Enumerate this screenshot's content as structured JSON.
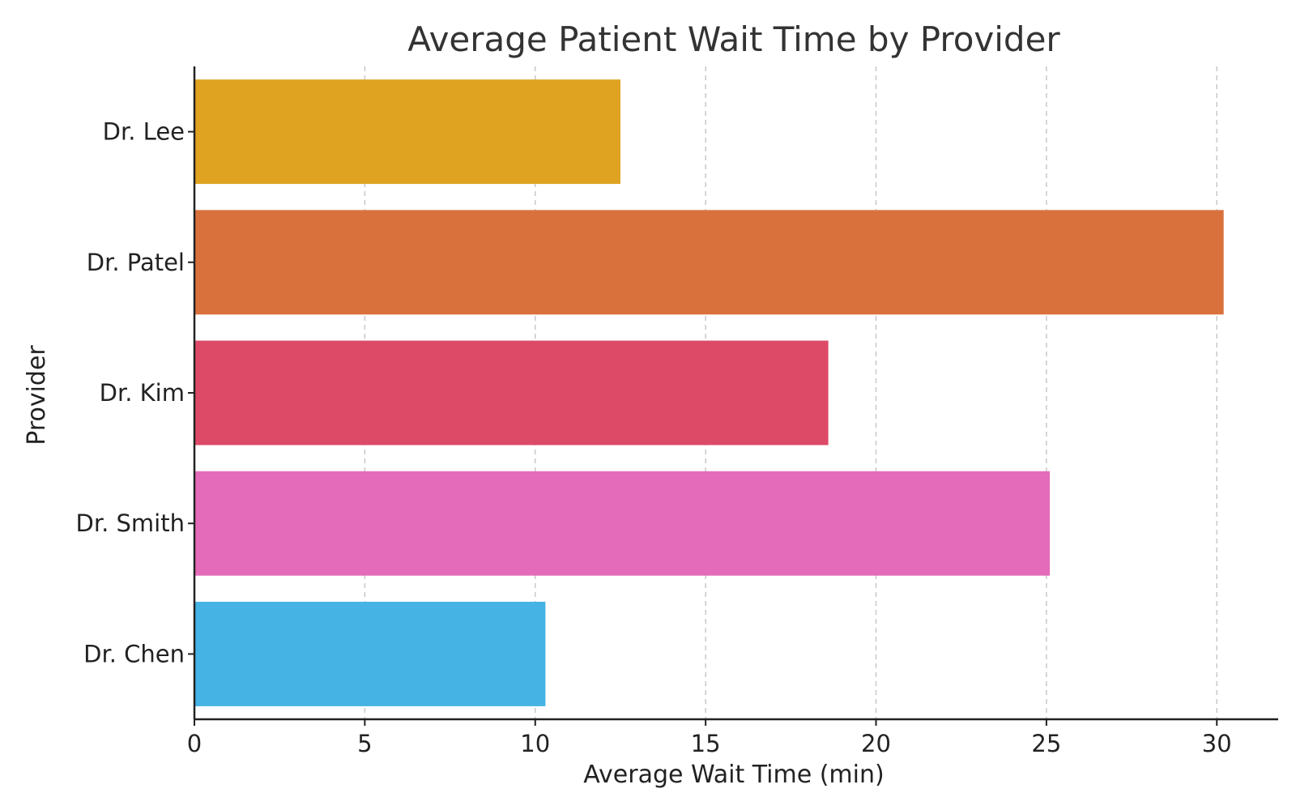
{
  "chart_data": {
    "type": "bar",
    "orientation": "horizontal",
    "title": "Average Patient Wait Time by Provider",
    "xlabel": "Average Wait Time (min)",
    "ylabel": "Provider",
    "categories": [
      "Dr. Lee",
      "Dr. Patel",
      "Dr. Kim",
      "Dr. Smith",
      "Dr. Chen"
    ],
    "values": [
      12.5,
      30.2,
      18.6,
      25.1,
      10.3
    ],
    "colors": [
      "#dfa321",
      "#d9713c",
      "#dc4a67",
      "#e46bb9",
      "#45b3e3"
    ],
    "xlim": [
      0,
      31.8
    ],
    "xticks": [
      0,
      5,
      10,
      15,
      20,
      25,
      30
    ],
    "grid": "x-major dashed",
    "legend": "none"
  }
}
